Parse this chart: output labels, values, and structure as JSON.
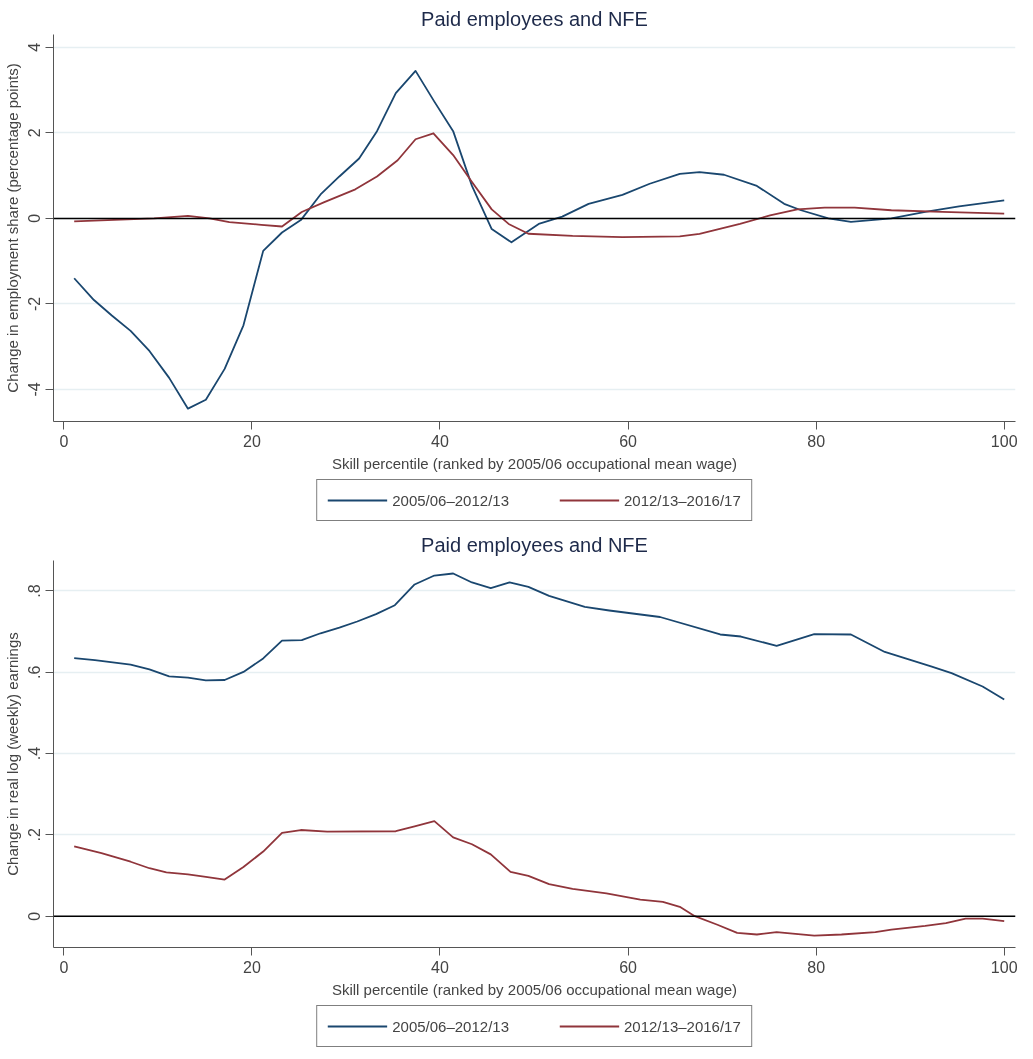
{
  "chart_data": [
    {
      "type": "line",
      "title": "Paid employees and NFE",
      "xlabel": "Skill percentile (ranked by 2005/06 occupational mean wage)",
      "ylabel": "Change in employment share (percentage points)",
      "xlim": [
        -1.1,
        101.2
      ],
      "xticks": [
        0,
        20,
        40,
        60,
        80,
        100
      ],
      "ylim": [
        -4.75,
        4.3
      ],
      "yticks": [
        -4,
        -2,
        0,
        2,
        4
      ],
      "grid": "y",
      "legend": "bottom",
      "line_style": "solid",
      "ref_lines": [
        {
          "axis": "y",
          "value": 0,
          "color": "#000000"
        }
      ],
      "series": [
        {
          "name": "2005/06–2012/13",
          "color": "#1a476f",
          "x": [
            1.1,
            3.2,
            5.1,
            7.1,
            9.1,
            11.2,
            13.2,
            15.1,
            17.1,
            19.1,
            21.2,
            23.2,
            25.2,
            27.3,
            29.3,
            31.4,
            33.3,
            35.3,
            37.4,
            39.4,
            41.4,
            43.4,
            45.5,
            47.6,
            50.5,
            53,
            55.8,
            59.4,
            62.3,
            65.5,
            67.6,
            70.2,
            73.7,
            76.6,
            78.4,
            81.3,
            83.7,
            88,
            91.6,
            95.2,
            100
          ],
          "values": [
            -1.4,
            -1.91,
            -2.27,
            -2.63,
            -3.1,
            -3.73,
            -4.45,
            -4.24,
            -3.52,
            -2.5,
            -0.76,
            -0.33,
            -0.04,
            0.56,
            0.98,
            1.4,
            2.04,
            2.93,
            3.45,
            2.73,
            2.04,
            0.76,
            -0.25,
            -0.56,
            -0.13,
            0.04,
            0.34,
            0.55,
            0.81,
            1.04,
            1.08,
            1.02,
            0.76,
            0.34,
            0.19,
            0,
            -0.08,
            0,
            0.15,
            0.28,
            0.42
          ]
        },
        {
          "name": "2012/13–2016/17",
          "color": "#90353b",
          "x": [
            1.1,
            9.6,
            13.2,
            15.5,
            17.6,
            21,
            23.2,
            25.3,
            27.7,
            31,
            33.3,
            35.5,
            37.4,
            39.3,
            41.4,
            43.4,
            45.5,
            47.3,
            49.4,
            54.1,
            59.4,
            65.5,
            67.6,
            71.9,
            75.1,
            78,
            80.9,
            84.1,
            88,
            93.4,
            100
          ],
          "values": [
            -0.07,
            0,
            0.06,
            0,
            -0.09,
            -0.15,
            -0.19,
            0.15,
            0.38,
            0.68,
            0.98,
            1.36,
            1.85,
            1.99,
            1.48,
            0.85,
            0.21,
            -0.13,
            -0.36,
            -0.41,
            -0.44,
            -0.42,
            -0.36,
            -0.13,
            0.07,
            0.21,
            0.25,
            0.25,
            0.19,
            0.15,
            0.11
          ]
        }
      ]
    },
    {
      "type": "line",
      "title": "Paid employees and NFE",
      "xlabel": "Skill percentile (ranked by 2005/06 occupational mean wage)",
      "ylabel": "Change in real log (weekly) earnings",
      "xlim": [
        -1.1,
        101.2
      ],
      "xticks": [
        0,
        20,
        40,
        60,
        80,
        100
      ],
      "ylim": [
        -0.077,
        0.875
      ],
      "yticks": [
        0,
        {
          "value": 0.2,
          "label": ".2"
        },
        {
          "value": 0.4,
          "label": ".4"
        },
        {
          "value": 0.6,
          "label": ".6"
        },
        {
          "value": 0.8,
          "label": ".8"
        }
      ],
      "grid": "y",
      "legend": "bottom",
      "line_style": "solid",
      "ref_lines": [
        {
          "axis": "y",
          "value": 0,
          "color": "#000000"
        }
      ],
      "series": [
        {
          "name": "2005/06–2012/13",
          "color": "#1a476f",
          "x": [
            1.1,
            3.3,
            7.1,
            9.1,
            11.2,
            13.2,
            15.1,
            17.1,
            19.1,
            21.2,
            23.2,
            25.3,
            27.3,
            29.3,
            31.2,
            33.2,
            35.2,
            37.3,
            39.4,
            41.4,
            43.4,
            45.4,
            47.4,
            49.4,
            51.6,
            55.4,
            58,
            63.4,
            69.8,
            72,
            75.8,
            79.8,
            83.7,
            87.3,
            92.3,
            94.4,
            97.7,
            100
          ],
          "values": [
            0.635,
            0.63,
            0.619,
            0.607,
            0.59,
            0.587,
            0.58,
            0.581,
            0.601,
            0.634,
            0.678,
            0.679,
            0.696,
            0.71,
            0.725,
            0.743,
            0.765,
            0.816,
            0.838,
            0.843,
            0.821,
            0.807,
            0.821,
            0.81,
            0.788,
            0.761,
            0.752,
            0.736,
            0.693,
            0.688,
            0.665,
            0.694,
            0.693,
            0.65,
            0.614,
            0.598,
            0.565,
            0.533
          ]
        },
        {
          "name": "2012/13–2016/17",
          "color": "#90353b",
          "x": [
            1.1,
            4,
            7.1,
            9.1,
            10.9,
            13.2,
            15.1,
            17.1,
            19.1,
            21.2,
            23.2,
            25.2,
            28,
            35.3,
            37.3,
            39.4,
            41.4,
            43.4,
            45.4,
            47.5,
            49.4,
            51.6,
            54.1,
            57.7,
            61.3,
            63.7,
            65.5,
            67.1,
            69.5,
            71.6,
            73.7,
            75.8,
            79.8,
            82.7,
            86.3,
            88,
            91.6,
            93.8,
            95.9,
            97.7,
            100
          ],
          "values": [
            0.172,
            0.155,
            0.134,
            0.118,
            0.108,
            0.103,
            0.097,
            0.09,
            0.121,
            0.159,
            0.205,
            0.212,
            0.208,
            0.209,
            0.221,
            0.234,
            0.194,
            0.177,
            0.152,
            0.109,
            0.099,
            0.079,
            0.067,
            0.056,
            0.041,
            0.035,
            0.023,
            0,
            -0.021,
            -0.041,
            -0.045,
            -0.039,
            -0.048,
            -0.045,
            -0.039,
            -0.033,
            -0.024,
            -0.017,
            -0.006,
            -0.006,
            -0.012
          ]
        }
      ]
    }
  ]
}
